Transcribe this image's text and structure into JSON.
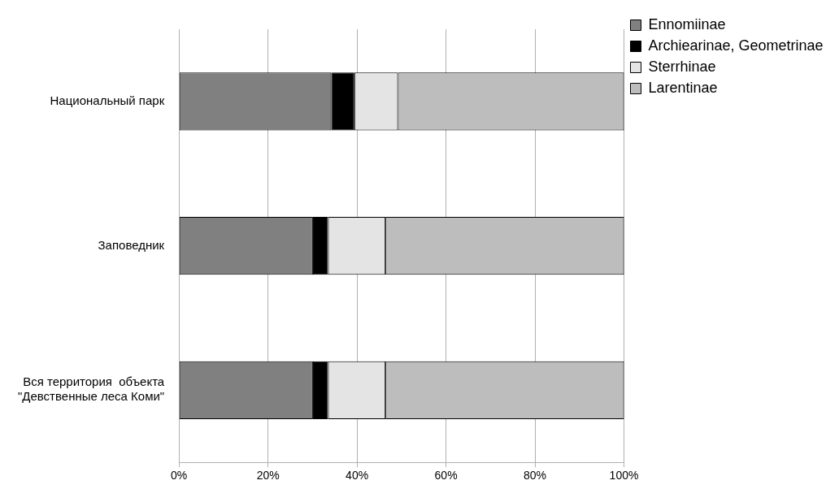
{
  "chart_data": {
    "type": "bar",
    "orientation": "horizontal",
    "stacked": true,
    "categories": [
      "Национальный парк",
      "Заповедник",
      "Вся территория  объекта\n\"Девственные леса Коми\""
    ],
    "series": [
      {
        "name": "Ennomiinae",
        "color": "#808080",
        "values": [
          34.2,
          30.1,
          30.1
        ]
      },
      {
        "name": "Archiearinae, Geometrinae",
        "color": "#000000",
        "values": [
          5.2,
          3.4,
          3.4
        ]
      },
      {
        "name": "Sterrhinae",
        "color": "#e4e4e4",
        "values": [
          9.8,
          12.9,
          12.9
        ]
      },
      {
        "name": "Larentinae",
        "color": "#bdbdbd",
        "values": [
          50.8,
          53.6,
          53.6
        ]
      }
    ],
    "xlim": [
      0,
      100
    ],
    "xticks": [
      {
        "value": 0,
        "label": "0%"
      },
      {
        "value": 20,
        "label": "20%"
      },
      {
        "value": 40,
        "label": "40%"
      },
      {
        "value": 60,
        "label": "60%"
      },
      {
        "value": 80,
        "label": "80%"
      },
      {
        "value": 100,
        "label": "100%"
      }
    ],
    "grid": "x",
    "legend": "top right"
  }
}
